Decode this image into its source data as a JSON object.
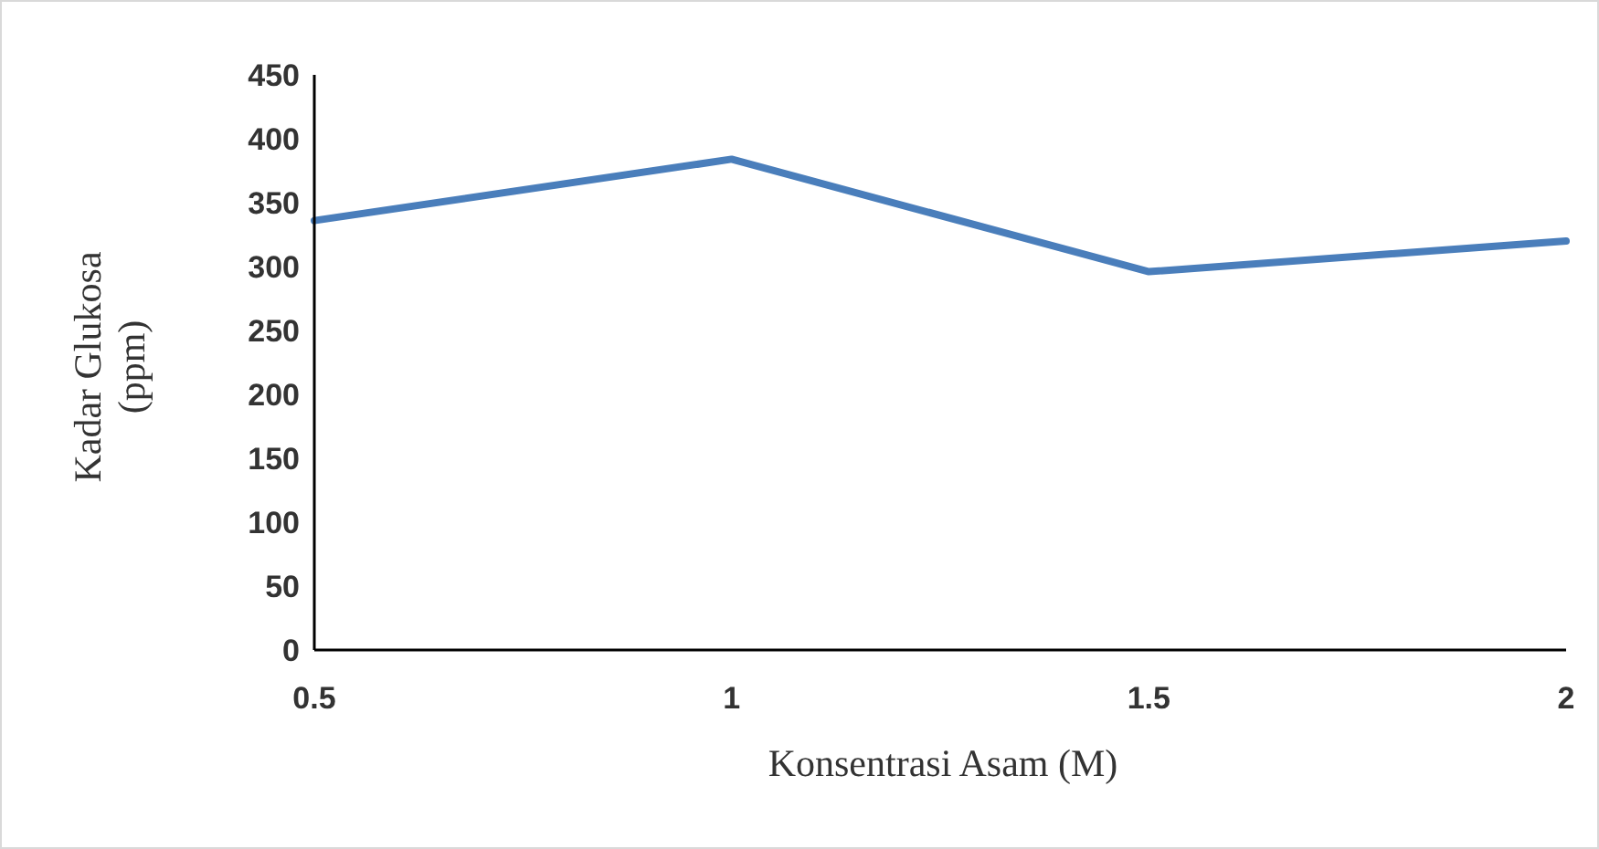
{
  "chart_data": {
    "type": "line",
    "xlabel": "Konsentrasi Asam (M)",
    "ylabel": "Kadar Glukosa (ppm)",
    "categories": [
      "0.5",
      "1",
      "1.5",
      "2"
    ],
    "series": [
      {
        "color": "#4a7ebb",
        "values": [
          336,
          384,
          296,
          320
        ]
      }
    ],
    "ylim": [
      0,
      450
    ],
    "yticks": [
      0,
      50,
      100,
      150,
      200,
      250,
      300,
      350,
      400,
      450
    ],
    "grid": false,
    "legend": false,
    "marker": "none",
    "line_style": "solid"
  }
}
